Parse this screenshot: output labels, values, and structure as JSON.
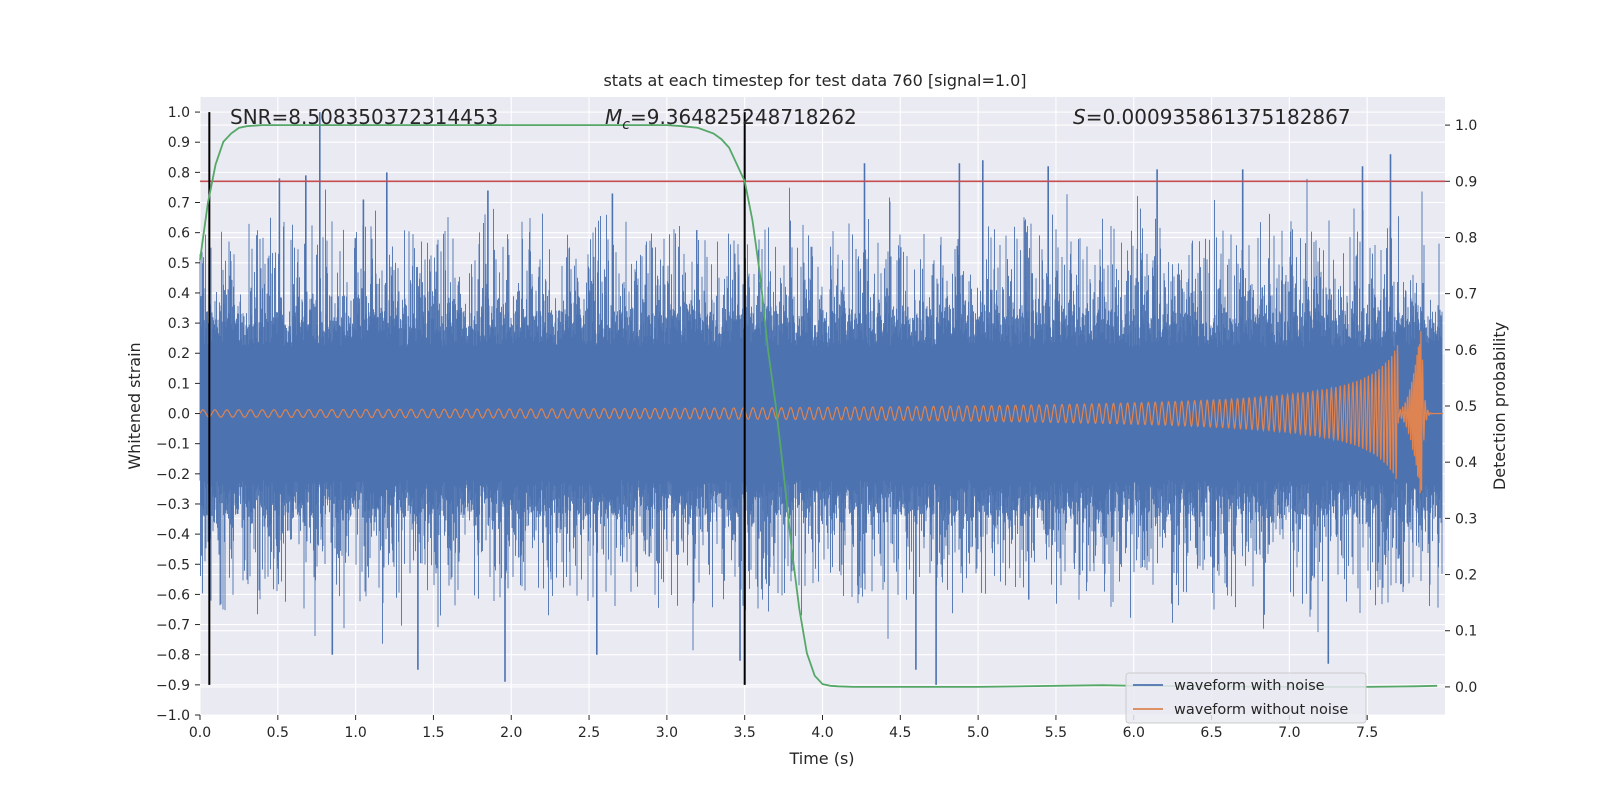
{
  "chart_data": {
    "type": "line",
    "title": "stats at each timestep for test data 760 [signal=1.0]",
    "xlabel": "Time (s)",
    "ylabel": "Whitened strain",
    "ylabel_right": "Detection probability",
    "xlim": [
      0.0,
      8.0
    ],
    "ylim": [
      -1.0,
      1.05
    ],
    "ylim_right": [
      -0.05,
      1.05
    ],
    "x_ticks": [
      0.0,
      0.5,
      1.0,
      1.5,
      2.0,
      2.5,
      3.0,
      3.5,
      4.0,
      4.5,
      5.0,
      5.5,
      6.0,
      6.5,
      7.0,
      7.5
    ],
    "x_tick_labels": [
      "0.0",
      "0.5",
      "1.0",
      "1.5",
      "2.0",
      "2.5",
      "3.0",
      "3.5",
      "4.0",
      "4.5",
      "5.0",
      "5.5",
      "6.0",
      "6.5",
      "7.0",
      "7.5"
    ],
    "y_ticks": [
      -1.0,
      -0.9,
      -0.8,
      -0.7,
      -0.6,
      -0.5,
      -0.4,
      -0.3,
      -0.2,
      -0.1,
      0.0,
      0.1,
      0.2,
      0.3,
      0.4,
      0.5,
      0.6,
      0.7,
      0.8,
      0.9,
      1.0
    ],
    "y_tick_labels": [
      "−1.0",
      "−0.9",
      "−0.8",
      "−0.7",
      "−0.6",
      "−0.5",
      "−0.4",
      "−0.3",
      "−0.2",
      "−0.1",
      "0.0",
      "0.1",
      "0.2",
      "0.3",
      "0.4",
      "0.5",
      "0.6",
      "0.7",
      "0.8",
      "0.9",
      "1.0"
    ],
    "y_right_ticks": [
      0.0,
      0.1,
      0.2,
      0.3,
      0.4,
      0.5,
      0.6,
      0.7,
      0.8,
      0.9,
      1.0
    ],
    "y_right_tick_labels": [
      "0.0",
      "0.1",
      "0.2",
      "0.3",
      "0.4",
      "0.5",
      "0.6",
      "0.7",
      "0.8",
      "0.9",
      "1.0"
    ],
    "grid": true,
    "annotations": {
      "snr": "SNR=8.508350372314453",
      "mc_symbol": "M",
      "mc_sub": "c",
      "mc_value": "=9.364825248718262",
      "s_symbol": "S",
      "s_value": "=0.000935861375182867"
    },
    "threshold": {
      "value": 0.9,
      "axis": "right",
      "color": "#c44e52"
    },
    "vertical_markers": [
      {
        "x": 0.06
      },
      {
        "x": 3.5
      }
    ],
    "vertical_marker_range": [
      -0.9,
      1.0
    ],
    "legend": {
      "position": "lower-right",
      "entries": [
        {
          "label": "waveform with noise",
          "color": "#4c72b0"
        },
        {
          "label": "waveform without noise",
          "color": "#dd8452"
        }
      ]
    },
    "series": [
      {
        "name": "waveform with noise",
        "color": "#4c72b0",
        "envelope_typical": [
          -0.45,
          0.45
        ],
        "peaks": [
          {
            "x": 0.77,
            "y": 1.0
          },
          {
            "x": 0.51,
            "y": 0.78
          },
          {
            "x": 0.68,
            "y": 0.79
          },
          {
            "x": 1.2,
            "y": 0.8
          },
          {
            "x": 1.05,
            "y": 0.71
          },
          {
            "x": 1.85,
            "y": 0.74
          },
          {
            "x": 2.65,
            "y": 0.73
          },
          {
            "x": 3.5,
            "y": 0.86
          },
          {
            "x": 4.27,
            "y": 0.83
          },
          {
            "x": 4.88,
            "y": 0.83
          },
          {
            "x": 5.03,
            "y": 0.84
          },
          {
            "x": 5.45,
            "y": 0.82
          },
          {
            "x": 6.15,
            "y": 0.81
          },
          {
            "x": 6.7,
            "y": 0.81
          },
          {
            "x": 7.47,
            "y": 0.82
          },
          {
            "x": 7.65,
            "y": 0.86
          },
          {
            "x": 1.4,
            "y": -0.85
          },
          {
            "x": 1.96,
            "y": -0.89
          },
          {
            "x": 0.85,
            "y": -0.8
          },
          {
            "x": 3.47,
            "y": -0.82
          },
          {
            "x": 4.6,
            "y": -0.85
          },
          {
            "x": 4.73,
            "y": -0.9
          },
          {
            "x": 7.25,
            "y": -0.83
          },
          {
            "x": 2.55,
            "y": -0.8
          }
        ]
      },
      {
        "name": "waveform without noise",
        "color": "#dd8452",
        "amplitude_start": 0.012,
        "amplitude_peak": 0.3,
        "merger_time": 7.85,
        "frequency_start_hz": 13,
        "frequency_peak_hz": 60
      },
      {
        "name": "detection probability",
        "color": "#55a868",
        "axis": "right",
        "x": [
          0.0,
          0.05,
          0.1,
          0.15,
          0.2,
          0.25,
          0.3,
          0.4,
          0.6,
          1.0,
          1.5,
          2.0,
          2.5,
          3.0,
          3.1,
          3.2,
          3.3,
          3.35,
          3.4,
          3.45,
          3.5,
          3.55,
          3.6,
          3.65,
          3.7,
          3.75,
          3.8,
          3.85,
          3.9,
          3.95,
          4.0,
          4.05,
          4.1,
          4.2,
          4.5,
          5.0,
          5.5,
          5.8,
          6.0,
          6.5,
          7.0,
          7.5,
          7.8,
          7.95
        ],
        "y": [
          0.76,
          0.86,
          0.93,
          0.97,
          0.985,
          0.995,
          0.998,
          1.0,
          1.0,
          1.0,
          1.0,
          1.0,
          1.0,
          1.0,
          0.998,
          0.995,
          0.985,
          0.975,
          0.96,
          0.93,
          0.9,
          0.83,
          0.73,
          0.6,
          0.5,
          0.38,
          0.25,
          0.14,
          0.06,
          0.02,
          0.005,
          0.002,
          0.001,
          0.0,
          0.0,
          0.0,
          0.002,
          0.003,
          0.002,
          0.001,
          0.0,
          0.0,
          0.001,
          0.002
        ]
      }
    ]
  }
}
